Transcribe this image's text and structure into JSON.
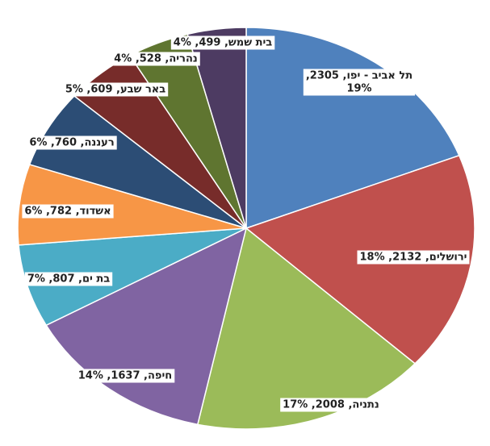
{
  "chart_data": {
    "type": "pie",
    "title": "",
    "start_angle_deg": 0,
    "direction": "clockwise",
    "legend": "none",
    "slices": [
      {
        "label": "תל אביב - יפו",
        "value": 2305,
        "percent": "19%",
        "color": "#4f81bd",
        "text_lines": [
          "תל אביב - יפו, 2305,",
          "19%"
        ]
      },
      {
        "label": "ירושלים",
        "value": 2132,
        "percent": "18%",
        "color": "#c0504d",
        "text_lines": [
          "ירושלים, 2132, 18%"
        ]
      },
      {
        "label": "נתניה",
        "value": 2008,
        "percent": "17%",
        "color": "#9bbb59",
        "text_lines": [
          "נתניה, 2008, 17%"
        ]
      },
      {
        "label": "חיפה",
        "value": 1637,
        "percent": "14%",
        "color": "#8064a2",
        "text_lines": [
          "חיפה, 1637, 14%"
        ]
      },
      {
        "label": "בת ים",
        "value": 807,
        "percent": "7%",
        "color": "#4bacc6",
        "text_lines": [
          "בת ים, 807, 7%"
        ]
      },
      {
        "label": "אשדוד",
        "value": 782,
        "percent": "6%",
        "color": "#f79646",
        "text_lines": [
          "אשדוד, 782, 6%"
        ]
      },
      {
        "label": "רעננה",
        "value": 760,
        "percent": "6%",
        "color": "#2c4d75",
        "text_lines": [
          "רעננה, 760, 6%"
        ]
      },
      {
        "label": "באר שבע",
        "value": 609,
        "percent": "5%",
        "color": "#772c2a",
        "text_lines": [
          "באר שבע, 609, 5%"
        ]
      },
      {
        "label": "נהריה",
        "value": 528,
        "percent": "4%",
        "color": "#5f7530",
        "text_lines": [
          "נהריה, 528, 4%"
        ]
      },
      {
        "label": "בית שמש",
        "value": 499,
        "percent": "4%",
        "color": "#4d3b62",
        "text_lines": [
          "בית שמש, 499, 4%"
        ]
      }
    ]
  }
}
